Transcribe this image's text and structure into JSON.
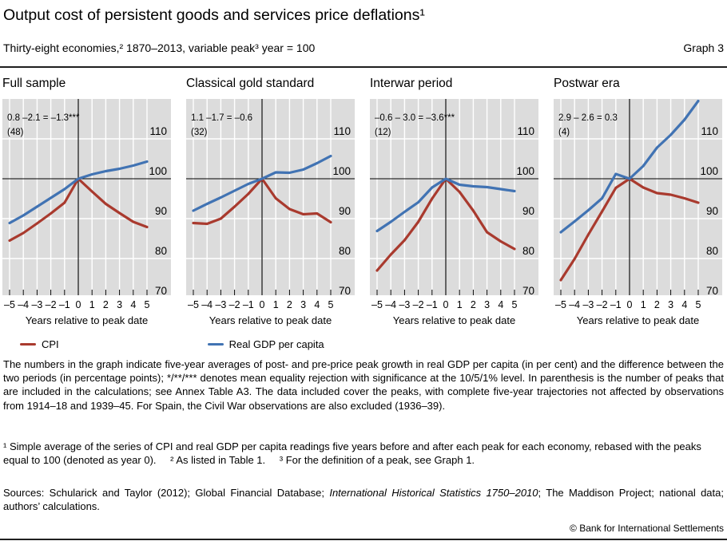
{
  "header": {
    "title": "Output cost of persistent goods and services price deflations¹",
    "subtitle": "Thirty-eight economies,² 1870–2013, variable peak³ year = 100",
    "graph_label": "Graph 3"
  },
  "chart_data": {
    "type": "line",
    "x": [
      -5,
      -4,
      -3,
      -2,
      -1,
      0,
      1,
      2,
      3,
      4,
      5
    ],
    "xtick_labels": [
      "–5",
      "–4",
      "–3",
      "–2",
      "–1",
      "0",
      "1",
      "2",
      "3",
      "4",
      "5"
    ],
    "xlabel": "Years relative to peak date",
    "ylim": [
      70,
      120
    ],
    "yticks": [
      110,
      100,
      90,
      80,
      70
    ],
    "grid": true,
    "baseline_value": 100,
    "colors": {
      "cpi": "#a93a2e",
      "gdp": "#4173b3",
      "plot_bg": "#dcdcdc",
      "gridline": "#ffffff",
      "axis": "#000000"
    },
    "legend": [
      {
        "id": "cpi",
        "label": "CPI",
        "color": "#a93a2e"
      },
      {
        "id": "gdp",
        "label": "Real GDP per capita",
        "color": "#4173b3"
      }
    ],
    "panels": [
      {
        "title": "Full sample",
        "annotation": "0.8 –2.1 = –1.3***",
        "peaks": "(48)",
        "series": [
          {
            "id": "cpi",
            "name": "CPI",
            "color": "#a93a2e",
            "values": [
              84.5,
              86.4,
              88.8,
              91.3,
              94.0,
              100,
              96.8,
              93.7,
              91.4,
              89.2,
              87.9
            ]
          },
          {
            "id": "gdp",
            "name": "Real GDP per capita",
            "color": "#4173b3",
            "values": [
              88.9,
              90.8,
              93.0,
              95.2,
              97.4,
              100,
              101.1,
              101.9,
              102.5,
              103.3,
              104.3
            ]
          }
        ]
      },
      {
        "title": "Classical gold standard",
        "annotation": "1.1 –1.7 = –0.6",
        "peaks": "(32)",
        "series": [
          {
            "id": "cpi",
            "name": "CPI",
            "color": "#a93a2e",
            "values": [
              88.9,
              88.7,
              90.0,
              93.0,
              96.2,
              100,
              95.1,
              92.4,
              91.1,
              91.3,
              89.1
            ]
          },
          {
            "id": "gdp",
            "name": "Real GDP per capita",
            "color": "#4173b3",
            "values": [
              92.0,
              93.7,
              95.3,
              97.0,
              98.7,
              100,
              101.6,
              101.5,
              102.3,
              103.9,
              105.7
            ]
          }
        ]
      },
      {
        "title": "Interwar period",
        "annotation": "–0.6 – 3.0 = –3.6***",
        "peaks": "(12)",
        "series": [
          {
            "id": "cpi",
            "name": "CPI",
            "color": "#a93a2e",
            "values": [
              77.0,
              81.0,
              84.6,
              89.2,
              95.0,
              100,
              96.7,
              92.0,
              86.6,
              84.3,
              82.4
            ]
          },
          {
            "id": "gdp",
            "name": "Real GDP per capita",
            "color": "#4173b3",
            "values": [
              86.9,
              89.2,
              91.7,
              94.1,
              97.8,
              100,
              98.5,
              98.1,
              97.9,
              97.4,
              96.9
            ]
          }
        ]
      },
      {
        "title": "Postwar era",
        "annotation": "2.9 – 2.6 = 0.3",
        "peaks": "(4)",
        "series": [
          {
            "id": "cpi",
            "name": "CPI",
            "color": "#a93a2e",
            "values": [
              74.6,
              79.9,
              86.0,
              91.8,
              97.7,
              100,
              97.8,
              96.4,
              96.0,
              95.1,
              94.0
            ]
          },
          {
            "id": "gdp",
            "name": "Real GDP per capita",
            "color": "#4173b3",
            "values": [
              86.6,
              89.3,
              92.1,
              95.1,
              101.2,
              100,
              103.2,
              107.8,
              111.0,
              114.8,
              119.5
            ]
          }
        ]
      }
    ]
  },
  "notes": {
    "body": "The numbers in the graph indicate five-year averages of post- and pre-price peak growth in real GDP per capita (in per cent) and the difference between the two periods (in percentage points); */**/*** denotes mean equality rejection with significance at the 10/5/1% level. In parenthesis is the number of peaks that are included in the calculations; see Annex Table A3. The data included cover the peaks, with complete five-year trajectories not affected by observations from 1914–18 and 1939–45. For Spain, the Civil War observations are also excluded (1936–39).",
    "footnote1": "¹  Simple average of the series of CPI and real GDP per capita readings five years before and after each peak for each economy, rebased with the peaks equal to 100 (denoted as year 0).",
    "footnote2": "²  As listed in Table 1.",
    "footnote3": "³  For the definition of a peak, see Graph 1."
  },
  "footer": {
    "sources_prefix": "Sources: Schularick and Taylor (2012); Global Financial Database; ",
    "sources_italic": "International Historical Statistics 1750–2010",
    "sources_suffix": "; The Maddison Project; national data; authors’ calculations.",
    "copyright": "© Bank for International Settlements"
  }
}
